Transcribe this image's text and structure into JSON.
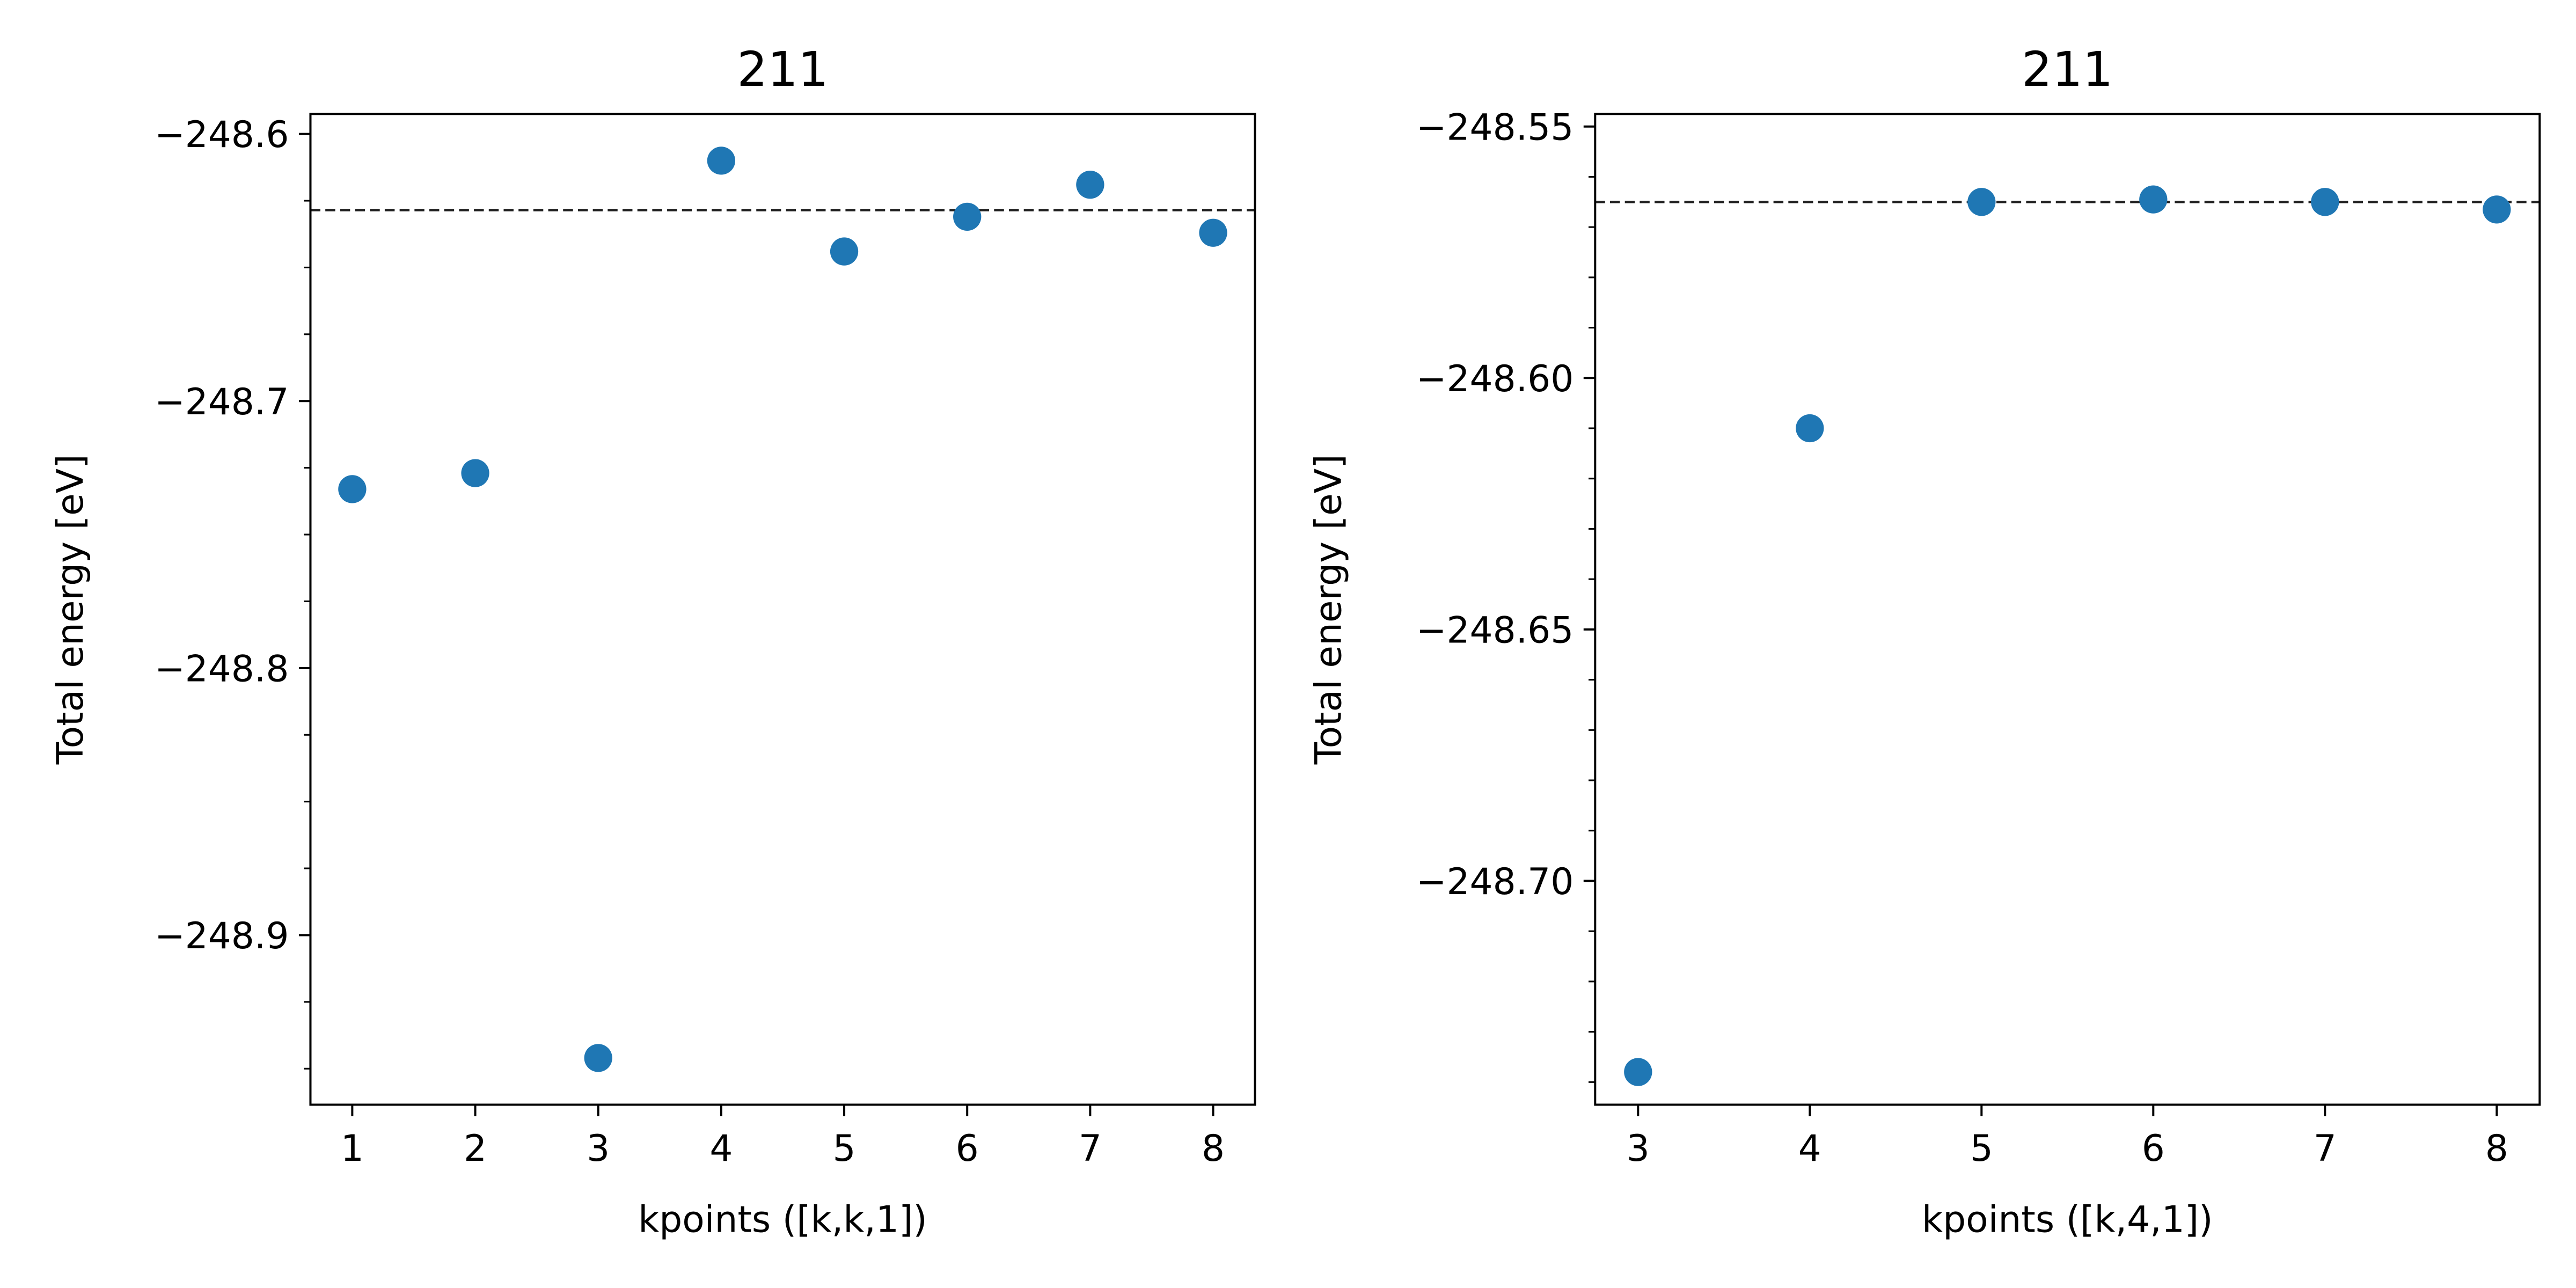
{
  "figure": {
    "background": "#ffffff",
    "marker_color": "#1f77b4",
    "reference_line_color": "#222222"
  },
  "chart_data": [
    {
      "type": "scatter",
      "title": "211",
      "xlabel": "kpoints ([k,k,1])",
      "ylabel": "Total energy [eV]",
      "x": [
        1,
        2,
        3,
        4,
        5,
        6,
        7,
        8
      ],
      "y": [
        -248.733,
        -248.727,
        -248.946,
        -248.61,
        -248.644,
        -248.631,
        -248.619,
        -248.637
      ],
      "xlim": [
        0.66,
        8.34
      ],
      "ylim": [
        -248.9635,
        -248.5925
      ],
      "x_ticks": [
        1,
        2,
        3,
        4,
        5,
        6,
        7,
        8
      ],
      "x_tick_labels": [
        "1",
        "2",
        "3",
        "4",
        "5",
        "6",
        "7",
        "8"
      ],
      "y_ticks": [
        -248.6,
        -248.7,
        -248.8,
        -248.9
      ],
      "y_tick_labels": [
        "−248.6",
        "−248.7",
        "−248.8",
        "−248.9"
      ],
      "y_minor_ticks": [
        -248.95,
        -248.925,
        -248.875,
        -248.85,
        -248.825,
        -248.775,
        -248.75,
        -248.725,
        -248.675,
        -248.65,
        -248.625
      ],
      "reference_line": {
        "y": -248.6285,
        "style": "dashed"
      },
      "grid": false,
      "legend": "none"
    },
    {
      "type": "scatter",
      "title": "211",
      "xlabel": "kpoints ([k,4,1])",
      "ylabel": "Total energy [eV]",
      "x": [
        3,
        4,
        5,
        6,
        7,
        8
      ],
      "y": [
        -248.738,
        -248.61,
        -248.565,
        -248.5645,
        -248.565,
        -248.5665
      ],
      "xlim": [
        2.75,
        8.25
      ],
      "ylim": [
        -248.7445,
        -248.5475
      ],
      "x_ticks": [
        3,
        4,
        5,
        6,
        7,
        8
      ],
      "x_tick_labels": [
        "3",
        "4",
        "5",
        "6",
        "7",
        "8"
      ],
      "y_ticks": [
        -248.55,
        -248.6,
        -248.65,
        -248.7
      ],
      "y_tick_labels": [
        "−248.55",
        "−248.60",
        "−248.65",
        "−248.70"
      ],
      "y_minor_ticks": [
        -248.74,
        -248.73,
        -248.72,
        -248.71,
        -248.69,
        -248.68,
        -248.67,
        -248.66,
        -248.64,
        -248.63,
        -248.62,
        -248.61,
        -248.59,
        -248.58,
        -248.57,
        -248.56
      ],
      "reference_line": {
        "y": -248.565,
        "style": "dashed"
      },
      "grid": false,
      "legend": "none"
    }
  ]
}
